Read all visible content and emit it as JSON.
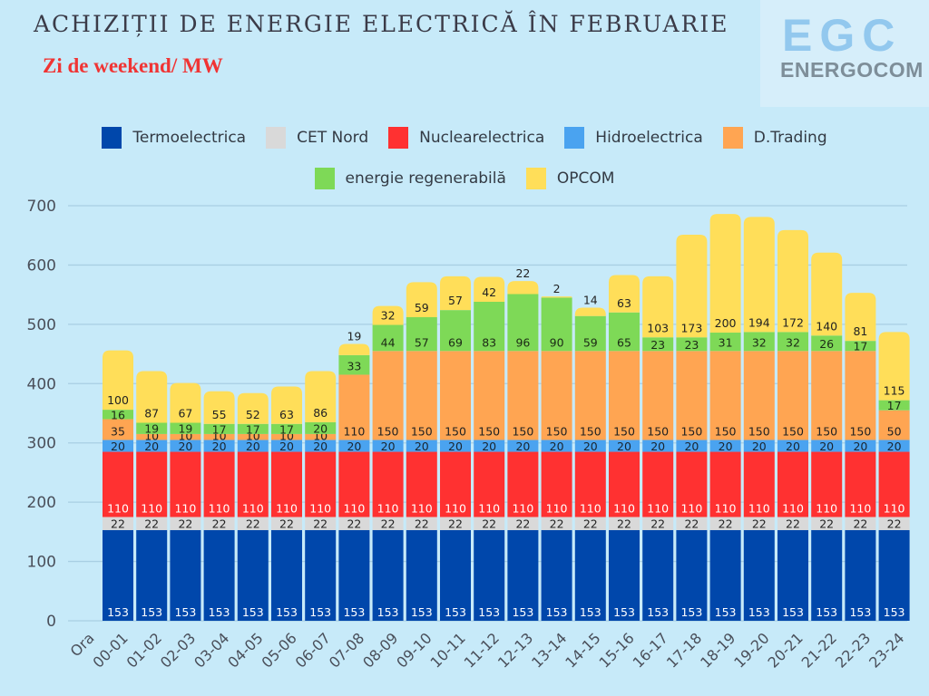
{
  "header": {
    "title": "ACHIZIȚII DE ENERGIE ELECTRICĂ ÎN FEBRUARIE",
    "subtitle": "Zi de weekend/ MW"
  },
  "logo": {
    "mark": "EGC",
    "name": "ENERGOCOM"
  },
  "chart_data": {
    "type": "bar",
    "stacked": true,
    "title": "ACHIZIȚII DE ENERGIE ELECTRICĂ ÎN FEBRUARIE",
    "subtitle": "Zi de weekend/ MW",
    "xlabel": "Ora",
    "ylabel": "MW",
    "ylim": [
      0,
      700
    ],
    "yticks": [
      0,
      100,
      200,
      300,
      400,
      500,
      600,
      700
    ],
    "grid": true,
    "legend_position": "top",
    "categories": [
      "00-01",
      "01-02",
      "02-03",
      "03-04",
      "04-05",
      "05-06",
      "06-07",
      "07-08",
      "08-09",
      "09-10",
      "10-11",
      "11-12",
      "12-13",
      "13-14",
      "14-15",
      "15-16",
      "16-17",
      "17-18",
      "18-19",
      "19-20",
      "20-21",
      "21-22",
      "22-23",
      "23-24"
    ],
    "series": [
      {
        "name": "Termoelectrica",
        "color": "#0047ab",
        "label_color": "#ffffff",
        "values": [
          153,
          153,
          153,
          153,
          153,
          153,
          153,
          153,
          153,
          153,
          153,
          153,
          153,
          153,
          153,
          153,
          153,
          153,
          153,
          153,
          153,
          153,
          153,
          153
        ]
      },
      {
        "name": "CET Nord",
        "color": "#d9d9d9",
        "label_color": "#222222",
        "values": [
          22,
          22,
          22,
          22,
          22,
          22,
          22,
          22,
          22,
          22,
          22,
          22,
          22,
          22,
          22,
          22,
          22,
          22,
          22,
          22,
          22,
          22,
          22,
          22
        ]
      },
      {
        "name": "Nuclearelectrica",
        "color": "#ff3131",
        "label_color": "#ffffff",
        "values": [
          110,
          110,
          110,
          110,
          110,
          110,
          110,
          110,
          110,
          110,
          110,
          110,
          110,
          110,
          110,
          110,
          110,
          110,
          110,
          110,
          110,
          110,
          110,
          110
        ]
      },
      {
        "name": "Hidroelectrica",
        "color": "#4aa3f0",
        "label_color": "#1a2530",
        "values": [
          20,
          20,
          20,
          20,
          20,
          20,
          20,
          20,
          20,
          20,
          20,
          20,
          20,
          20,
          20,
          20,
          20,
          20,
          20,
          20,
          20,
          20,
          20,
          20
        ]
      },
      {
        "name": "D.Trading",
        "color": "#ffa552",
        "label_color": "#222222",
        "values": [
          35,
          10,
          10,
          10,
          10,
          10,
          10,
          110,
          150,
          150,
          150,
          150,
          150,
          150,
          150,
          150,
          150,
          150,
          150,
          150,
          150,
          150,
          150,
          50
        ]
      },
      {
        "name": "energie regenerabilă",
        "color": "#7ed957",
        "label_color": "#1c2a16",
        "values": [
          16,
          19,
          19,
          17,
          17,
          17,
          20,
          33,
          44,
          57,
          69,
          83,
          96,
          90,
          59,
          65,
          23,
          23,
          31,
          32,
          32,
          26,
          17,
          17
        ]
      },
      {
        "name": "OPCOM",
        "color": "#ffde59",
        "label_color": "#222222",
        "values": [
          100,
          87,
          67,
          55,
          52,
          63,
          86,
          19,
          32,
          59,
          57,
          42,
          22,
          2,
          14,
          63,
          103,
          173,
          200,
          194,
          172,
          140,
          81,
          115
        ]
      }
    ]
  }
}
